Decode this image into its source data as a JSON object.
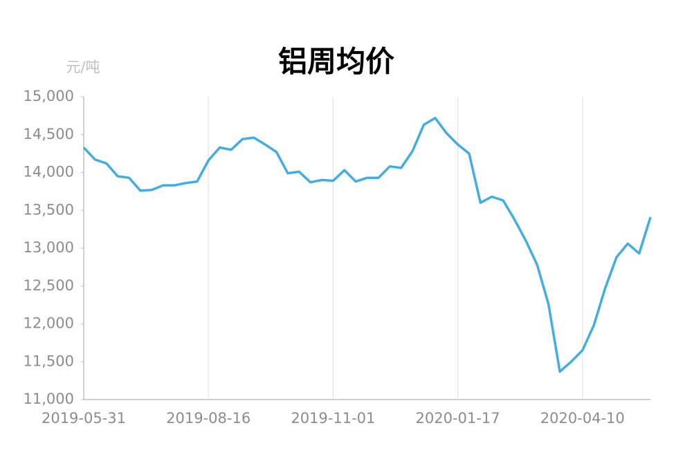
{
  "chart_data": {
    "type": "line",
    "title": "铝周均价",
    "y_unit": "元/吨",
    "categories": [
      "2019-05-31",
      null,
      null,
      null,
      null,
      null,
      null,
      null,
      null,
      null,
      null,
      "2019-08-16",
      null,
      null,
      null,
      null,
      null,
      null,
      null,
      null,
      null,
      null,
      "2019-11-01",
      null,
      null,
      null,
      null,
      null,
      null,
      null,
      null,
      null,
      null,
      "2020-01-17",
      null,
      null,
      null,
      null,
      null,
      null,
      null,
      null,
      null,
      null,
      "2020-04-10",
      null,
      null,
      null,
      null,
      null,
      null
    ],
    "series": [
      {
        "name": "铝周均价",
        "color": "#41ade0",
        "values": [
          14330,
          14170,
          14120,
          13950,
          13930,
          13760,
          13770,
          13830,
          13830,
          13860,
          13880,
          14160,
          14330,
          14300,
          14440,
          14460,
          14370,
          14270,
          13990,
          14010,
          13870,
          13900,
          13890,
          14030,
          13880,
          13930,
          13930,
          14080,
          14060,
          14280,
          14630,
          14720,
          14520,
          14370,
          14250,
          13600,
          13680,
          13630,
          13380,
          13100,
          12780,
          12260,
          11370,
          11500,
          11650,
          11980,
          12470,
          12880,
          13060,
          12930,
          13410
        ]
      }
    ],
    "ylim": [
      11000,
      15000
    ],
    "yticks": [
      {
        "value": 11000,
        "label": "11,000"
      },
      {
        "value": 11500,
        "label": "11,500"
      },
      {
        "value": 12000,
        "label": "12,000"
      },
      {
        "value": 12500,
        "label": "12,500"
      },
      {
        "value": 13000,
        "label": "13,000"
      },
      {
        "value": 13500,
        "label": "13,500"
      },
      {
        "value": 14000,
        "label": "14,000"
      },
      {
        "value": 14500,
        "label": "14,500"
      },
      {
        "value": 15000,
        "label": "15,000"
      }
    ],
    "grid": true
  }
}
